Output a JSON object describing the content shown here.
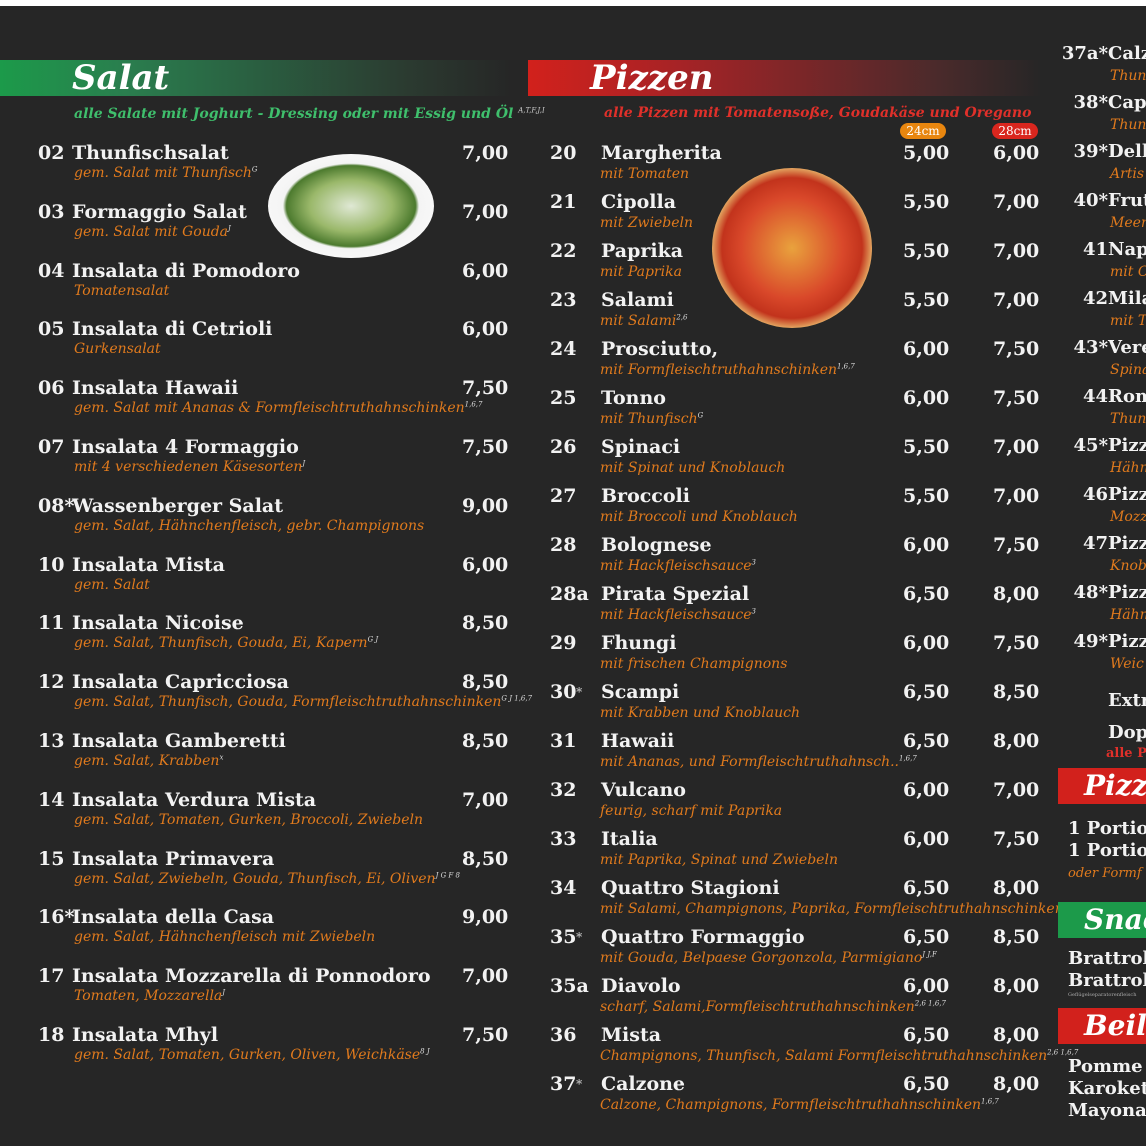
{
  "salat": {
    "title": "Salat",
    "subtitle": "alle Salate mit Joghurt - Dressing oder mit Essig und Öl",
    "subtitle_note": "A,T,F,J,I",
    "accent": "#1c9a4a",
    "items": [
      {
        "num": "02",
        "name": "Thunfischsalat",
        "price": "7,00",
        "desc": "gem. Salat mit Thunfisch",
        "sup": "G"
      },
      {
        "num": "03",
        "name": "Formaggio Salat",
        "price": "7,00",
        "desc": "gem. Salat mit Gouda",
        "sup": "J"
      },
      {
        "num": "04",
        "name": "Insalata di Pomodoro",
        "price": "6,00",
        "desc": "Tomatensalat",
        "sup": ""
      },
      {
        "num": "05",
        "name": "Insalata di Cetrioli",
        "price": "6,00",
        "desc": "Gurkensalat",
        "sup": ""
      },
      {
        "num": "06",
        "name": "Insalata Hawaii",
        "price": "7,50",
        "desc": "gem. Salat mit Ananas & Formfleischtruthahnschinken",
        "sup": "1,6,7"
      },
      {
        "num": "07",
        "name": "Insalata 4 Formaggio",
        "price": "7,50",
        "desc": "mit 4 verschiedenen Käsesorten",
        "sup": "J"
      },
      {
        "num": "08*",
        "name": "Wassenberger Salat",
        "price": "9,00",
        "desc": "gem. Salat, Hähnchenfleisch, gebr. Champignons",
        "sup": ""
      },
      {
        "num": "10",
        "name": "Insalata Mista",
        "price": "6,00",
        "desc": "gem. Salat",
        "sup": ""
      },
      {
        "num": "11",
        "name": "Insalata Nicoise",
        "price": "8,50",
        "desc": "gem. Salat, Thunfisch, Gouda, Ei, Kapern",
        "sup": "G J"
      },
      {
        "num": "12",
        "name": "Insalata Capricciosa",
        "price": "8,50",
        "desc": "gem. Salat, Thunfisch, Gouda, Formfleischtruthahnschinken",
        "sup": "G J 1,6,7"
      },
      {
        "num": "13",
        "name": "Insalata Gamberetti",
        "price": "8,50",
        "desc": "gem. Salat, Krabben",
        "sup": "x"
      },
      {
        "num": "14",
        "name": "Insalata Verdura Mista",
        "price": "7,00",
        "desc": "gem. Salat, Tomaten, Gurken, Broccoli, Zwiebeln",
        "sup": ""
      },
      {
        "num": "15",
        "name": "Insalata Primavera",
        "price": "8,50",
        "desc": "gem. Salat, Zwiebeln, Gouda, Thunfisch, Ei, Oliven",
        "sup": "J G F 8"
      },
      {
        "num": "16*",
        "name": "Insalata della Casa",
        "price": "9,00",
        "desc": "gem. Salat, Hähnchenfleisch mit Zwiebeln",
        "sup": ""
      },
      {
        "num": "17",
        "name": "Insalata Mozzarella di Ponnodoro",
        "price": "7,00",
        "desc": "Tomaten, Mozzarella",
        "sup": "J"
      },
      {
        "num": "18",
        "name": "Insalata Mhyl",
        "price": "7,50",
        "desc": "gem. Salat, Tomaten, Gurken, Oliven, Weichkäse",
        "sup": "8 J"
      }
    ]
  },
  "pizzen": {
    "title": "Pizzen",
    "subtitle": "alle Pizzen mit Tomatensoße, Goudakäse und Oregano",
    "accent": "#d2211c",
    "size_small": "24cm",
    "size_large": "28cm",
    "size_small_color": "#e8860f",
    "size_large_color": "#d9261e",
    "items": [
      {
        "num": "20",
        "star": "",
        "name": "Margherita",
        "desc": "mit Tomaten",
        "sup": "",
        "p24": "5,00",
        "p28": "6,00"
      },
      {
        "num": "21",
        "star": "",
        "name": "Cipolla",
        "desc": "mit Zwiebeln",
        "sup": "",
        "p24": "5,50",
        "p28": "7,00"
      },
      {
        "num": "22",
        "star": "",
        "name": "Paprika",
        "desc": "mit Paprika",
        "sup": "",
        "p24": "5,50",
        "p28": "7,00"
      },
      {
        "num": "23",
        "star": "",
        "name": "Salami",
        "desc": "mit Salami",
        "sup": "2,6",
        "p24": "5,50",
        "p28": "7,00"
      },
      {
        "num": "24",
        "star": "",
        "name": "Prosciutto,",
        "desc": "mit Formfleischtruthahnschinken",
        "sup": "1,6,7",
        "p24": "6,00",
        "p28": "7,50"
      },
      {
        "num": "25",
        "star": "",
        "name": "Tonno",
        "desc": "mit Thunfisch",
        "sup": "G",
        "p24": "6,00",
        "p28": "7,50"
      },
      {
        "num": "26",
        "star": "",
        "name": "Spinaci",
        "desc": "mit Spinat und Knoblauch",
        "sup": "",
        "p24": "5,50",
        "p28": "7,00"
      },
      {
        "num": "27",
        "star": "",
        "name": "Broccoli",
        "desc": "mit Broccoli und Knoblauch",
        "sup": "",
        "p24": "5,50",
        "p28": "7,00"
      },
      {
        "num": "28",
        "star": "",
        "name": "Bolognese",
        "desc": "mit Hackfleischsauce",
        "sup": "3",
        "p24": "6,00",
        "p28": "7,50"
      },
      {
        "num": "28a",
        "star": "",
        "name": "Pirata Spezial",
        "desc": "mit Hackfleischsauce",
        "sup": "3",
        "p24": "6,50",
        "p28": "8,00"
      },
      {
        "num": "29",
        "star": "",
        "name": "Fhungi",
        "desc": "mit frischen Champignons",
        "sup": "",
        "p24": "6,00",
        "p28": "7,50"
      },
      {
        "num": "30",
        "star": "*",
        "name": "Scampi",
        "desc": "mit Krabben und Knoblauch",
        "sup": "",
        "p24": "6,50",
        "p28": "8,50"
      },
      {
        "num": "31",
        "star": "",
        "name": "Hawaii",
        "desc": "mit Ananas, und Formfleischtruthahnsch..",
        "sup": "1,6,7",
        "p24": "6,50",
        "p28": "8,00"
      },
      {
        "num": "32",
        "star": "",
        "name": "Vulcano",
        "desc": "feurig, scharf mit Paprika",
        "sup": "",
        "p24": "6,00",
        "p28": "7,00"
      },
      {
        "num": "33",
        "star": "",
        "name": "Italia",
        "desc": "mit Paprika, Spinat und Zwiebeln",
        "sup": "",
        "p24": "6,00",
        "p28": "7,50"
      },
      {
        "num": "34",
        "star": "",
        "name": "Quattro Stagioni",
        "desc": "mit Salami, Champignons, Paprika, Formfleischtruthahnschinken",
        "sup": "2,6 1,6,7",
        "p24": "6,50",
        "p28": "8,00"
      },
      {
        "num": "35",
        "star": "*",
        "name": "Quattro Formaggio",
        "desc": "mit Gouda, Belpaese Gorgonzola, Parmigiano",
        "sup": "J J,F",
        "p24": "6,50",
        "p28": "8,50"
      },
      {
        "num": "35a",
        "star": "",
        "name": "Diavolo",
        "desc": "scharf, Salami,Formfleischtruthahnschinken",
        "sup": "2,6 1,6,7",
        "p24": "6,00",
        "p28": "8,00"
      },
      {
        "num": "36",
        "star": "",
        "name": "Mista",
        "desc": "Champignons, Thunfisch, Salami Formfleischtruthahnschinken",
        "sup": "2,6 1,6,7",
        "p24": "6,50",
        "p28": "8,00"
      },
      {
        "num": "37",
        "star": "*",
        "name": "Calzone",
        "desc": "Calzone, Champignons, Formfleischtruthahnschinken",
        "sup": "1,6,7",
        "p24": "6,50",
        "p28": "8,00"
      }
    ]
  },
  "right": {
    "items": [
      {
        "num": "37a*",
        "name": "Calz",
        "desc": "Thun"
      },
      {
        "num": "38*",
        "name": "Cap",
        "desc": "Thun"
      },
      {
        "num": "39*",
        "name": "Dell",
        "desc": "Artis"
      },
      {
        "num": "40*",
        "name": "Frut",
        "desc": "Meer"
      },
      {
        "num": "41",
        "name": "Nap",
        "desc": "mit O"
      },
      {
        "num": "42",
        "name": "Mila",
        "desc": "mit T"
      },
      {
        "num": "43*",
        "name": "Vere",
        "desc": "Spina"
      },
      {
        "num": "44",
        "name": "Rom",
        "desc": "Thun"
      },
      {
        "num": "45*",
        "name": "Pizz",
        "desc": "Hähn"
      },
      {
        "num": "46",
        "name": "Pizz",
        "desc": "Mozz"
      },
      {
        "num": "47",
        "name": "Pizz",
        "desc": "Knob"
      },
      {
        "num": "48*",
        "name": "Pizz",
        "desc": "Hähn"
      },
      {
        "num": "49*",
        "name": "Pizz",
        "desc": "Weic"
      }
    ],
    "extra": "Extr",
    "double": "Dop",
    "double_note": "alle P",
    "section2_title": "Pizz",
    "portion1": "1 Portio",
    "portion2": "1 Portio",
    "portion_note": "oder Formf",
    "snack_title": "Snac",
    "snack1": "Brattrol",
    "snack2": "Brattrol",
    "snack_note": "Geflügelseparatorenfleisch",
    "beilage_title": "Beil",
    "side1": "Pomme",
    "side2": "Karoket",
    "side3": "Mayona"
  }
}
